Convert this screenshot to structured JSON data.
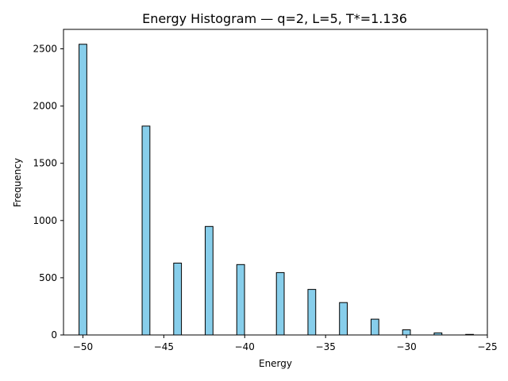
{
  "chart_data": {
    "type": "bar",
    "title": "Energy Histogram — q=2, L=5, T*=1.136",
    "xlabel": "Energy",
    "ylabel": "Frequency",
    "xlim": [
      -51.2,
      -25.0
    ],
    "ylim": [
      0,
      2670
    ],
    "xticks": [
      -50,
      -45,
      -40,
      -35,
      -30,
      -25
    ],
    "xtick_labels": [
      "−50",
      "−45",
      "−40",
      "−35",
      "−30",
      "−25"
    ],
    "yticks": [
      0,
      500,
      1000,
      1500,
      2000,
      2500
    ],
    "ytick_labels": [
      "0",
      "500",
      "1000",
      "1500",
      "2000",
      "2500"
    ],
    "bin_width": 0.48,
    "bins": [
      {
        "x": -50.0,
        "count": 2540
      },
      {
        "x": -46.1,
        "count": 1825
      },
      {
        "x": -44.15,
        "count": 628
      },
      {
        "x": -42.2,
        "count": 948
      },
      {
        "x": -40.25,
        "count": 615
      },
      {
        "x": -37.8,
        "count": 545
      },
      {
        "x": -35.85,
        "count": 398
      },
      {
        "x": -33.9,
        "count": 283
      },
      {
        "x": -31.95,
        "count": 138
      },
      {
        "x": -30.0,
        "count": 45
      },
      {
        "x": -28.05,
        "count": 18
      },
      {
        "x": -26.1,
        "count": 5
      }
    ],
    "colors": {
      "bar_fill": "#87ceeb",
      "bar_edge": "#000000"
    },
    "grid": false,
    "legend": "none"
  }
}
